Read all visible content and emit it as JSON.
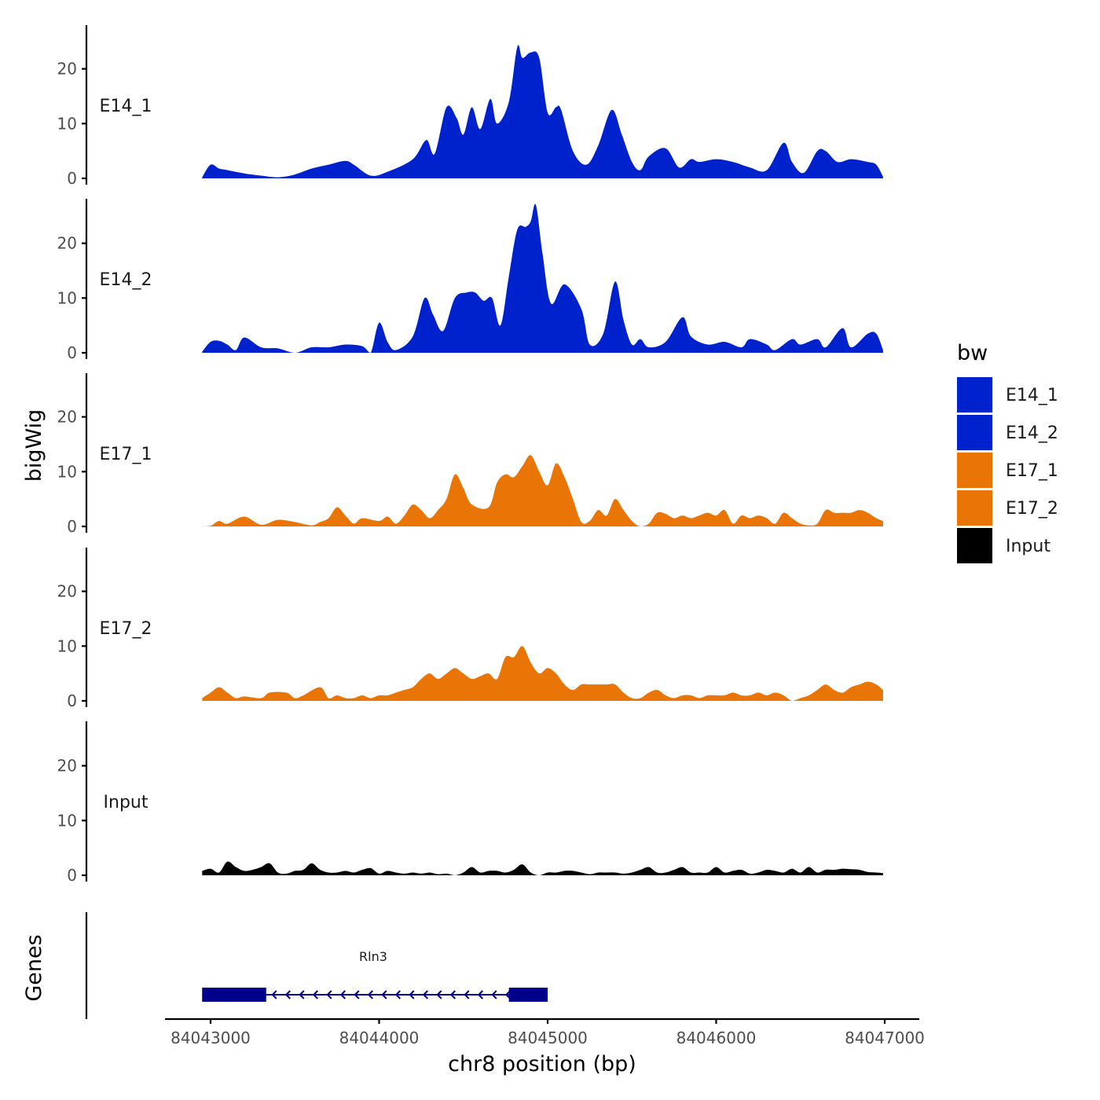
{
  "chart_data": {
    "type": "area",
    "x_axis": {
      "label": "chr8 position (bp)",
      "range": [
        84042800,
        84047200
      ],
      "ticks": [
        84043000,
        84044000,
        84045000,
        84046000,
        84047000
      ],
      "tick_labels": [
        "84043000",
        "84044000",
        "84045000",
        "84046000",
        "84047000"
      ]
    },
    "y_axis": {
      "label": "bigWig",
      "range": [
        0,
        28
      ],
      "ticks": [
        0,
        10,
        20
      ],
      "tick_labels": [
        "0",
        "10",
        "20"
      ]
    },
    "genes_label": "Genes",
    "legend": {
      "title": "bw",
      "position": "right",
      "items": [
        {
          "name": "E14_1",
          "color": "#0022cc"
        },
        {
          "name": "E14_2",
          "color": "#0022cc"
        },
        {
          "name": "E17_1",
          "color": "#e87505"
        },
        {
          "name": "E17_2",
          "color": "#e87505"
        },
        {
          "name": "Input",
          "color": "#000000"
        }
      ]
    },
    "tracks": [
      {
        "name": "E14_1",
        "color": "#0022cc",
        "x": [
          84042950,
          84043000,
          84043050,
          84043100,
          84043200,
          84043300,
          84043400,
          84043500,
          84043600,
          84043700,
          84043800,
          84043850,
          84043950,
          84044050,
          84044200,
          84044280,
          84044330,
          84044400,
          84044460,
          84044500,
          84044550,
          84044600,
          84044660,
          84044700,
          84044770,
          84044820,
          84044850,
          84044900,
          84044950,
          84045000,
          84045050,
          84045080,
          84045150,
          84045230,
          84045300,
          84045380,
          84045440,
          84045500,
          84045550,
          84045600,
          84045700,
          84045780,
          84045850,
          84045900,
          84046000,
          84046100,
          84046200,
          84046300,
          84046400,
          84046450,
          84046520,
          84046600,
          84046650,
          84046720,
          84046800,
          84046900,
          84046950,
          84046990
        ],
        "values": [
          0.2,
          2.5,
          1.8,
          1.5,
          0.9,
          0.5,
          0.2,
          0.7,
          1.8,
          2.5,
          3.2,
          2.5,
          0.5,
          1.2,
          3.5,
          7,
          4.5,
          13,
          11,
          8,
          13,
          9,
          14.5,
          10,
          14,
          24,
          22,
          23,
          22,
          12,
          13,
          12.5,
          5,
          2.5,
          6,
          12.5,
          8,
          3,
          1.5,
          4,
          5.5,
          2,
          3.5,
          3,
          3.5,
          3,
          2,
          1.5,
          6.5,
          3,
          1,
          5,
          5,
          3,
          3.5,
          3,
          2.5,
          0.3
        ]
      },
      {
        "name": "E14_2",
        "color": "#0022cc",
        "x": [
          84042950,
          84043000,
          84043050,
          84043100,
          84043150,
          84043200,
          84043300,
          84043400,
          84043500,
          84043600,
          84043700,
          84043800,
          84043900,
          84043950,
          84044000,
          84044050,
          84044100,
          84044200,
          84044270,
          84044320,
          84044380,
          84044450,
          84044520,
          84044570,
          84044620,
          84044670,
          84044720,
          84044770,
          84044820,
          84044870,
          84044900,
          84044930,
          84044970,
          84045020,
          84045100,
          84045200,
          84045250,
          84045330,
          84045400,
          84045450,
          84045500,
          84045550,
          84045600,
          84045700,
          84045800,
          84045850,
          84045950,
          84046050,
          84046150,
          84046200,
          84046300,
          84046350,
          84046450,
          84046500,
          84046600,
          84046650,
          84046750,
          84046800,
          84046900,
          84046950,
          84046990
        ],
        "values": [
          0.2,
          2,
          2.2,
          1.5,
          0.5,
          2.8,
          1,
          0.8,
          0,
          1,
          1,
          1.5,
          1.2,
          0,
          5.5,
          2,
          0.5,
          3,
          10,
          7,
          4,
          10,
          11,
          11,
          9.5,
          10,
          5,
          14,
          22.5,
          23,
          24,
          27,
          18,
          9,
          12.5,
          8,
          1.5,
          3.5,
          13,
          6,
          1.5,
          2.5,
          1,
          2,
          6.5,
          3,
          1.5,
          2,
          1,
          2.5,
          1.5,
          0.5,
          2.5,
          1.5,
          2.5,
          1,
          4.5,
          1,
          3.5,
          3.5,
          0.5
        ]
      },
      {
        "name": "E17_1",
        "color": "#e87505",
        "x": [
          84042950,
          84043000,
          84043050,
          84043100,
          84043200,
          84043300,
          84043400,
          84043500,
          84043600,
          84043650,
          84043700,
          84043750,
          84043800,
          84043850,
          84043900,
          84044000,
          84044050,
          84044100,
          84044150,
          84044200,
          84044250,
          84044300,
          84044350,
          84044400,
          84044450,
          84044500,
          84044550,
          84044650,
          84044700,
          84044750,
          84044800,
          84044850,
          84044900,
          84044950,
          84045000,
          84045050,
          84045100,
          84045150,
          84045200,
          84045250,
          84045300,
          84045350,
          84045400,
          84045450,
          84045500,
          84045550,
          84045600,
          84045650,
          84045700,
          84045750,
          84045800,
          84045850,
          84045900,
          84045950,
          84046000,
          84046050,
          84046100,
          84046150,
          84046200,
          84046250,
          84046300,
          84046350,
          84046400,
          84046450,
          84046500,
          84046550,
          84046600,
          84046650,
          84046700,
          84046750,
          84046800,
          84046850,
          84046900,
          84046950,
          84046990
        ],
        "values": [
          0,
          0.1,
          1,
          0.5,
          1.8,
          0.3,
          1.2,
          0.8,
          0.2,
          0.8,
          1.5,
          3.5,
          2,
          0.5,
          1.5,
          1,
          1.8,
          0.5,
          2,
          4,
          3,
          1.5,
          3,
          5,
          9.5,
          7,
          4,
          3.5,
          8,
          9.5,
          9,
          11,
          13,
          10,
          7.5,
          11.5,
          9,
          5,
          0.8,
          1,
          3,
          2,
          5,
          3,
          1,
          0,
          0.5,
          2.5,
          2.3,
          1.5,
          2,
          1.5,
          2,
          2.5,
          2,
          3,
          0.5,
          2,
          1.5,
          2,
          1.5,
          0.5,
          2.5,
          1.5,
          0.5,
          0.2,
          0.5,
          3,
          2.5,
          2.5,
          2.5,
          3,
          2.5,
          1.5,
          1
        ]
      },
      {
        "name": "E17_2",
        "color": "#e87505",
        "x": [
          84042950,
          84043000,
          84043050,
          84043100,
          84043150,
          84043200,
          84043300,
          84043350,
          84043450,
          84043500,
          84043550,
          84043650,
          84043700,
          84043750,
          84043800,
          84043850,
          84043900,
          84043950,
          84044000,
          84044050,
          84044100,
          84044150,
          84044200,
          84044250,
          84044300,
          84044350,
          84044400,
          84044450,
          84044500,
          84044550,
          84044600,
          84044650,
          84044700,
          84044750,
          84044800,
          84044850,
          84044900,
          84044950,
          84045000,
          84045050,
          84045100,
          84045150,
          84045200,
          84045250,
          84045300,
          84045350,
          84045400,
          84045450,
          84045500,
          84045550,
          84045600,
          84045650,
          84045700,
          84045750,
          84045800,
          84045850,
          84045900,
          84045950,
          84046000,
          84046050,
          84046100,
          84046150,
          84046200,
          84046250,
          84046300,
          84046350,
          84046400,
          84046450,
          84046500,
          84046550,
          84046600,
          84046650,
          84046700,
          84046750,
          84046800,
          84046850,
          84046900,
          84046950,
          84046990
        ],
        "values": [
          0.5,
          1.5,
          2.5,
          1.5,
          0.5,
          0.8,
          0.5,
          1.5,
          1.5,
          0.5,
          1,
          2.5,
          0.5,
          1,
          0.5,
          0.5,
          1,
          0.5,
          1,
          1,
          1.5,
          2,
          2.5,
          4,
          5,
          4,
          5,
          6,
          5,
          4,
          4.5,
          5,
          4,
          8,
          8,
          10,
          7,
          5,
          6,
          5,
          3,
          2,
          3,
          3,
          3,
          3,
          3,
          1.5,
          0.5,
          0.5,
          1.5,
          2,
          1,
          0.5,
          1,
          1,
          0.5,
          1,
          1,
          1,
          1.5,
          1,
          1,
          1.5,
          1,
          1.5,
          1,
          0,
          0.5,
          1,
          2,
          3,
          2,
          1.5,
          2.5,
          3,
          3.5,
          3,
          2
        ]
      },
      {
        "name": "Input",
        "color": "#000000",
        "x": [
          84042950,
          84043000,
          84043050,
          84043100,
          84043150,
          84043200,
          84043250,
          84043300,
          84043350,
          84043400,
          84043450,
          84043500,
          84043550,
          84043600,
          84043650,
          84043700,
          84043750,
          84043800,
          84043850,
          84043900,
          84043950,
          84044000,
          84044050,
          84044100,
          84044150,
          84044200,
          84044250,
          84044300,
          84044350,
          84044400,
          84044450,
          84044500,
          84044550,
          84044600,
          84044650,
          84044700,
          84044750,
          84044800,
          84044850,
          84044900,
          84044950,
          84045000,
          84045050,
          84045100,
          84045150,
          84045200,
          84045250,
          84045300,
          84045350,
          84045400,
          84045450,
          84045500,
          84045550,
          84045600,
          84045650,
          84045700,
          84045750,
          84045800,
          84045850,
          84045900,
          84045950,
          84046000,
          84046050,
          84046100,
          84046150,
          84046200,
          84046250,
          84046300,
          84046350,
          84046400,
          84046450,
          84046500,
          84046550,
          84046600,
          84046650,
          84046700,
          84046750,
          84046800,
          84046850,
          84046900,
          84046950,
          84046990
        ],
        "values": [
          0.8,
          1.2,
          0.5,
          2.5,
          1.5,
          0.8,
          1,
          1.5,
          2.2,
          0.5,
          0.3,
          0.8,
          1,
          2.2,
          1,
          0.5,
          0.5,
          0.8,
          0.5,
          1,
          1.3,
          0.3,
          0.8,
          0.5,
          0.3,
          0.5,
          0.3,
          0.5,
          0.2,
          0.3,
          0,
          0.5,
          1.5,
          0.5,
          0.8,
          0.8,
          0.5,
          1,
          2,
          0.5,
          0,
          0.5,
          0.5,
          0.8,
          0.8,
          0.5,
          0.2,
          0.5,
          0.5,
          0.5,
          0.3,
          0.5,
          1,
          1.5,
          0.5,
          0.5,
          1,
          1.5,
          0.5,
          0.5,
          0.5,
          1.5,
          0.5,
          0.8,
          1,
          0.3,
          0.5,
          1,
          0.8,
          0.5,
          1.2,
          0.5,
          1.5,
          0.5,
          1,
          1,
          1.2,
          1.1,
          1,
          0.6,
          0.5,
          0.4
        ]
      }
    ],
    "gene": {
      "name": "Rln3",
      "strand": "-",
      "start": 84042950,
      "end": 84045000,
      "exons": [
        [
          84042950,
          84043330
        ],
        [
          84044770,
          84045000
        ]
      ],
      "color": "#00008b"
    }
  }
}
